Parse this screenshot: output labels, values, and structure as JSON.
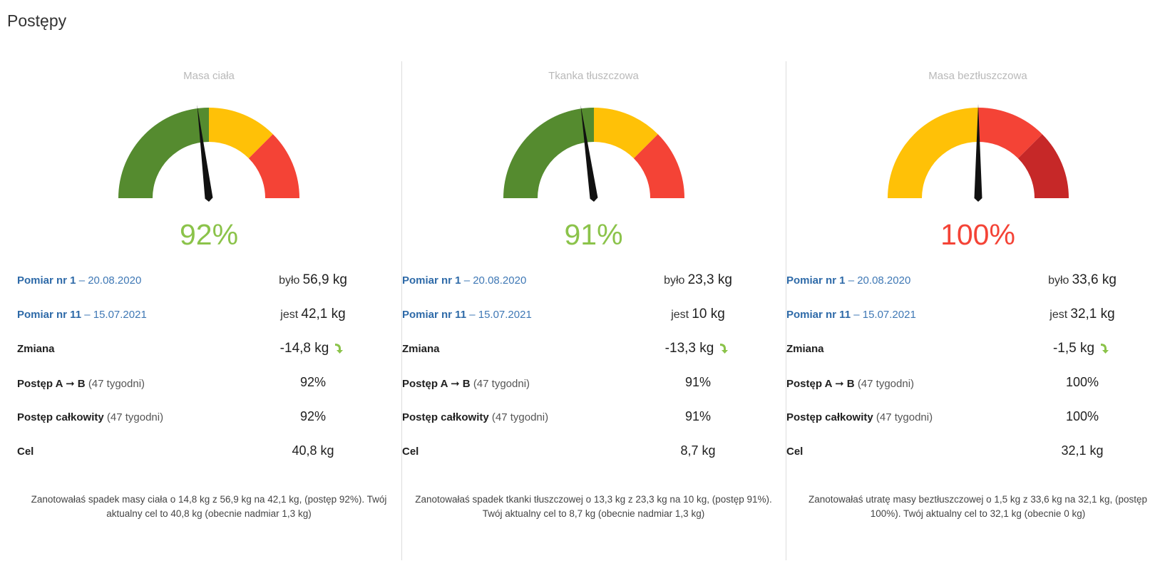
{
  "page_title": "Postępy",
  "colors": {
    "green": "#558b2f",
    "yellow": "#ffc107",
    "red": "#f44336",
    "dark_red": "#c62828",
    "pct_green": "#8bc34a",
    "pct_red": "#f44336"
  },
  "panels": [
    {
      "title": "Masa ciała",
      "percent": "92%",
      "percent_color": "#8bc34a",
      "gauge": {
        "segments": [
          "#558b2f",
          "#ffc107",
          "#f44336"
        ],
        "split": [
          0.5,
          0.75
        ],
        "needle_fraction": 0.46
      },
      "measure1": {
        "label": "Pomiar nr 1",
        "date": "– 20.08.2020",
        "prefix": "było",
        "value": "56,9 kg"
      },
      "measure2": {
        "label": "Pomiar nr 11",
        "date": "– 15.07.2021",
        "prefix": "jest",
        "value": "42,1 kg"
      },
      "change": {
        "label": "Zmiana",
        "value": "-14,8 kg"
      },
      "progress_ab": {
        "label": "Postęp A ➞ B",
        "weeks": "(47 tygodni)",
        "value": "92%"
      },
      "progress_total": {
        "label": "Postęp całkowity",
        "weeks": "(47 tygodni)",
        "value": "92%"
      },
      "goal": {
        "label": "Cel",
        "value": "40,8 kg"
      },
      "summary": "Zanotowałaś spadek masy ciała o 14,8 kg z 56,9 kg na 42,1 kg, (postęp 92%). Twój aktualny cel to 40,8 kg (obecnie nadmiar 1,3 kg)"
    },
    {
      "title": "Tkanka tłuszczowa",
      "percent": "91%",
      "percent_color": "#8bc34a",
      "gauge": {
        "segments": [
          "#558b2f",
          "#ffc107",
          "#f44336"
        ],
        "split": [
          0.5,
          0.75
        ],
        "needle_fraction": 0.455
      },
      "measure1": {
        "label": "Pomiar nr 1",
        "date": "– 20.08.2020",
        "prefix": "było",
        "value": "23,3 kg"
      },
      "measure2": {
        "label": "Pomiar nr 11",
        "date": "– 15.07.2021",
        "prefix": "jest",
        "value": "10 kg"
      },
      "change": {
        "label": "Zmiana",
        "value": "-13,3 kg"
      },
      "progress_ab": {
        "label": "Postęp A ➞ B",
        "weeks": "(47 tygodni)",
        "value": "91%"
      },
      "progress_total": {
        "label": "Postęp całkowity",
        "weeks": "(47 tygodni)",
        "value": "91%"
      },
      "goal": {
        "label": "Cel",
        "value": "8,7 kg"
      },
      "summary": "Zanotowałaś spadek tkanki tłuszczowej o 13,3 kg z 23,3 kg na 10 kg, (postęp 91%). Twój aktualny cel to 8,7 kg (obecnie nadmiar 1,3 kg)"
    },
    {
      "title": "Masa beztłuszczowa",
      "percent": "100%",
      "percent_color": "#f44336",
      "gauge": {
        "segments": [
          "#ffc107",
          "#f44336",
          "#c62828"
        ],
        "split": [
          0.5,
          0.75
        ],
        "needle_fraction": 0.5
      },
      "measure1": {
        "label": "Pomiar nr 1",
        "date": "– 20.08.2020",
        "prefix": "było",
        "value": "33,6 kg"
      },
      "measure2": {
        "label": "Pomiar nr 11",
        "date": "– 15.07.2021",
        "prefix": "jest",
        "value": "32,1 kg"
      },
      "change": {
        "label": "Zmiana",
        "value": "-1,5 kg"
      },
      "progress_ab": {
        "label": "Postęp A ➞ B",
        "weeks": "(47 tygodni)",
        "value": "100%"
      },
      "progress_total": {
        "label": "Postęp całkowity",
        "weeks": "(47 tygodni)",
        "value": "100%"
      },
      "goal": {
        "label": "Cel",
        "value": "32,1 kg"
      },
      "summary": "Zanotowałaś utratę masy beztłuszczowej o 1,5 kg z 33,6 kg na 32,1 kg, (postęp 100%). Twój aktualny cel to 32,1 kg (obecnie 0 kg)"
    }
  ]
}
